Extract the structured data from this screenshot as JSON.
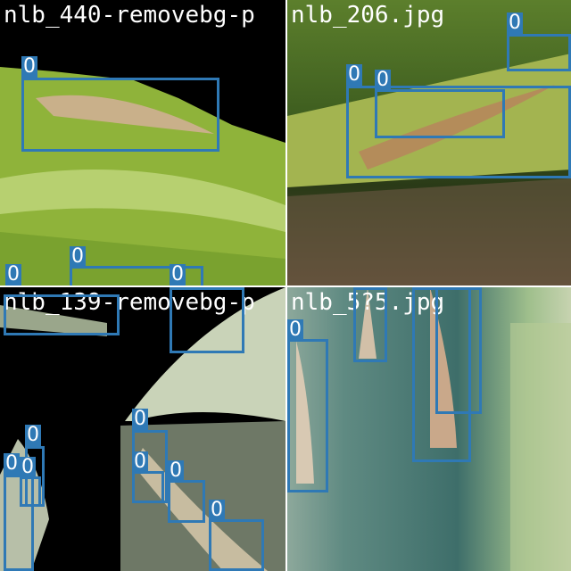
{
  "tiles": [
    {
      "id": "tile-0",
      "title": "nlb_440-removebg-p"
    },
    {
      "id": "tile-1",
      "title": "nlb_206.jpg"
    },
    {
      "id": "tile-2",
      "title": "nlb_139-removebg-p"
    },
    {
      "id": "tile-3",
      "title": "nlb_5?5.jpg"
    }
  ],
  "class_label": "0",
  "box_color": "#2f79b5"
}
